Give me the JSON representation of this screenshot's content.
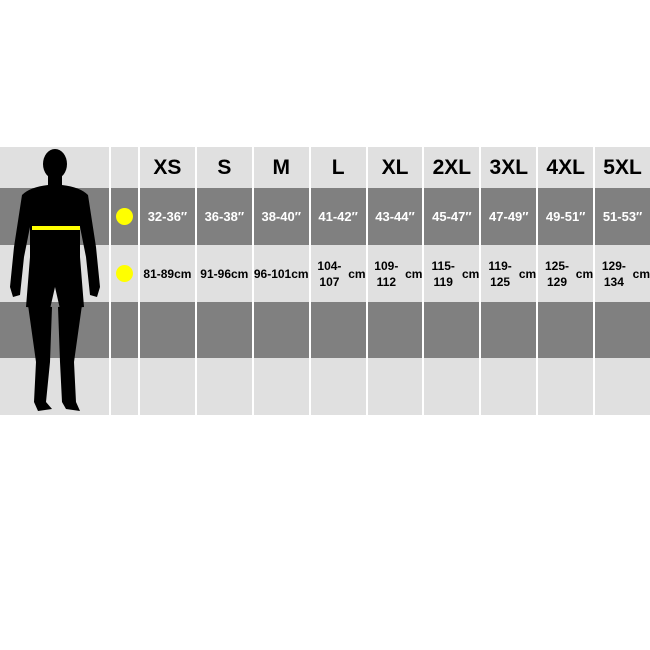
{
  "sizes": [
    "XS",
    "S",
    "M",
    "L",
    "XL",
    "2XL",
    "3XL",
    "4XL",
    "5XL"
  ],
  "inches": [
    "32-36″",
    "36-38″",
    "38-40″",
    "41-42″",
    "43-44″",
    "45-47″",
    "47-49″",
    "49-51″",
    "51-53″"
  ],
  "cm": [
    "81-89",
    "91-96",
    "96-101",
    "104-107",
    "109-112",
    "115-119",
    "119-125",
    "125-129",
    "129-134"
  ],
  "cm_unit": "cm",
  "colors": {
    "marker": "#ffff00",
    "row_dark": "#808080",
    "row_light": "#e0e0e0"
  },
  "icons": {
    "figure": "human-silhouette-icon",
    "marker": "yellow-dot-icon"
  }
}
